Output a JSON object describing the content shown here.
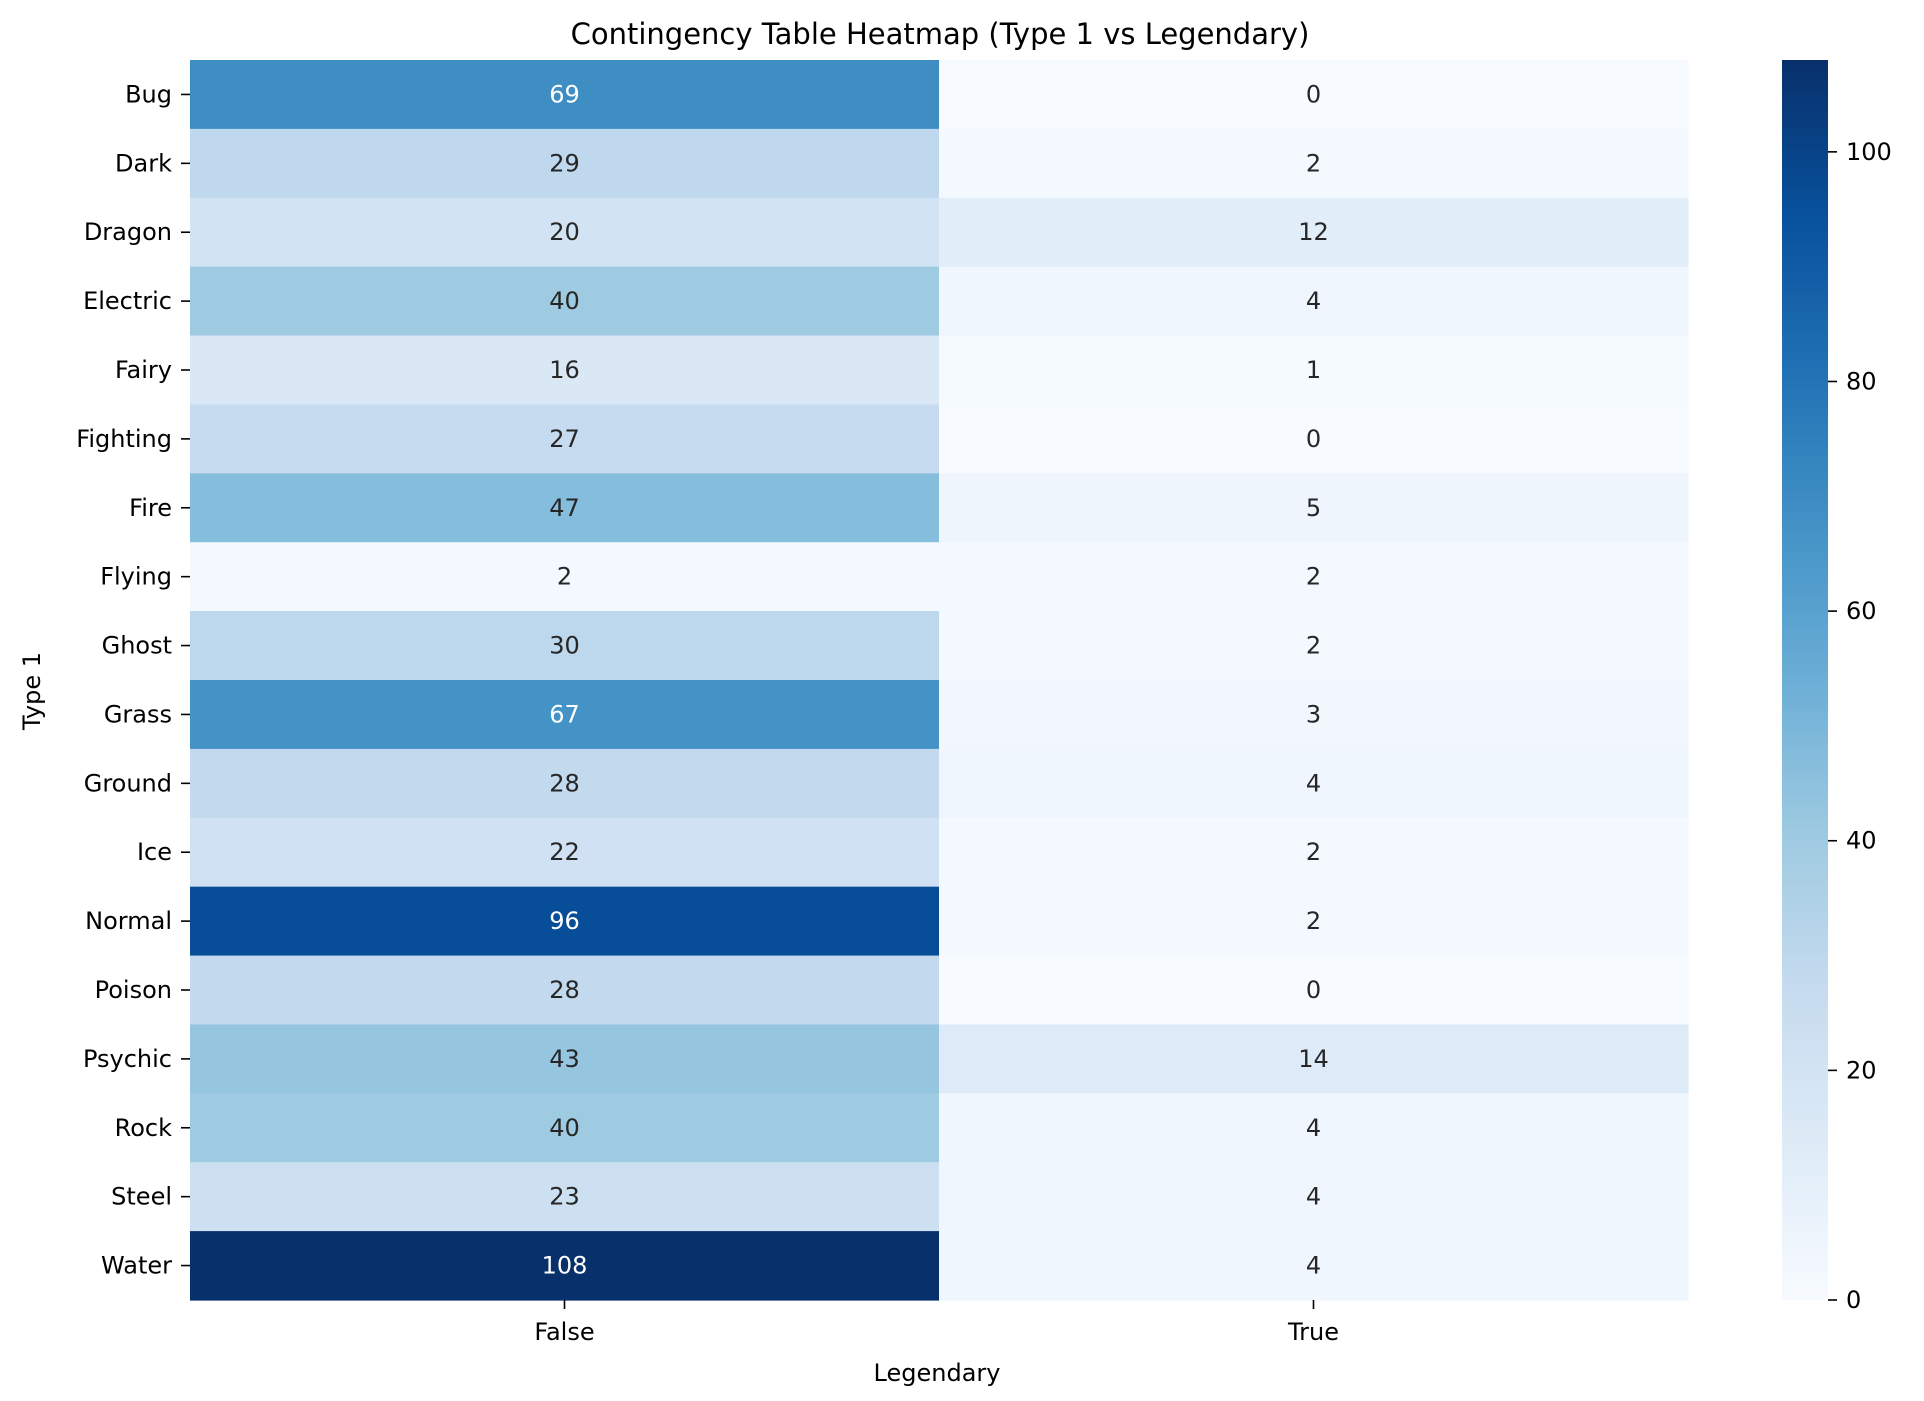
{
  "chart_data": {
    "type": "heatmap",
    "title": "Contingency Table Heatmap (Type 1 vs Legendary)",
    "xlabel": "Legendary",
    "ylabel": "Type 1",
    "columns": [
      "False",
      "True"
    ],
    "rows": [
      "Bug",
      "Dark",
      "Dragon",
      "Electric",
      "Fairy",
      "Fighting",
      "Fire",
      "Flying",
      "Ghost",
      "Grass",
      "Ground",
      "Ice",
      "Normal",
      "Poison",
      "Psychic",
      "Rock",
      "Steel",
      "Water"
    ],
    "values": [
      [
        69,
        0
      ],
      [
        29,
        2
      ],
      [
        20,
        12
      ],
      [
        40,
        4
      ],
      [
        16,
        1
      ],
      [
        27,
        0
      ],
      [
        47,
        5
      ],
      [
        2,
        2
      ],
      [
        30,
        2
      ],
      [
        67,
        3
      ],
      [
        28,
        4
      ],
      [
        22,
        2
      ],
      [
        96,
        2
      ],
      [
        28,
        0
      ],
      [
        43,
        14
      ],
      [
        40,
        4
      ],
      [
        23,
        4
      ],
      [
        108,
        4
      ]
    ],
    "colormap": "Blues",
    "vmin": 0,
    "vmax": 108,
    "colorbar_ticks": [
      0,
      20,
      40,
      60,
      80,
      100
    ],
    "annotations": true,
    "grid": false
  }
}
